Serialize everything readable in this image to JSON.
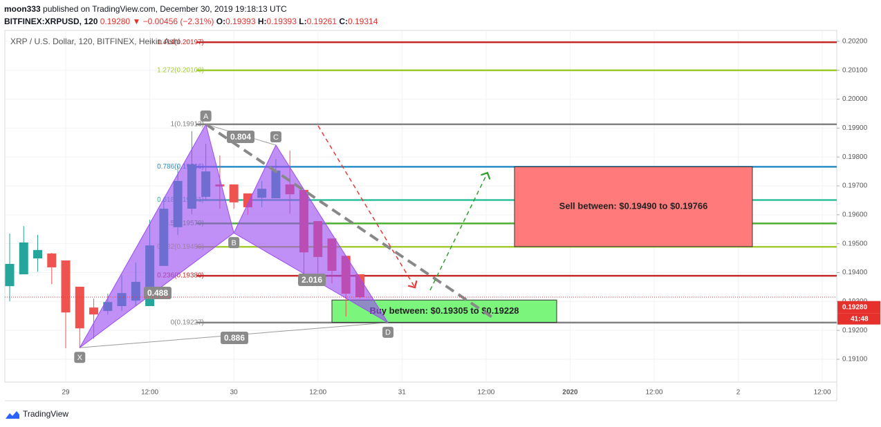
{
  "header": {
    "user": "moon333",
    "published": "published on TradingView.com, December 30, 2019 19:18:13 UTC",
    "symbol": "BITFINEX:XRPUSD, 120",
    "last": "0.19280",
    "change": "▼ −0.00456 (−2.31%)",
    "ohlc": [
      {
        "label": "O:",
        "value": "0.19393"
      },
      {
        "label": "H:",
        "value": "0.19393"
      },
      {
        "label": "L:",
        "value": "0.19261"
      },
      {
        "label": "C:",
        "value": "0.19314"
      }
    ]
  },
  "chart_data": {
    "type": "candlestick",
    "title": "XRP / U.S. Dollar, 120, BITFINEX, Heikin Ashi",
    "categories": [
      null,
      null,
      null,
      null,
      "29",
      null,
      null,
      null,
      null,
      null,
      "12:00",
      null,
      null,
      null,
      null,
      null,
      "30",
      null,
      null,
      null,
      null,
      null,
      "12:00",
      null,
      null,
      null,
      null,
      null,
      "31",
      null,
      null,
      null,
      null,
      null,
      "12:00",
      null,
      null,
      null,
      null,
      null,
      "2020",
      null,
      null,
      null,
      null,
      null,
      "12:00",
      null,
      null,
      null,
      null,
      null,
      "2",
      null,
      null,
      null,
      null,
      null,
      "12:00"
    ],
    "open": [
      0.19353,
      0.19394,
      0.19449,
      0.19466,
      0.19442,
      0.19351,
      0.19279,
      0.19267,
      0.19284,
      0.19303,
      0.19284,
      0.19423,
      0.19557,
      0.19621,
      0.19662,
      0.19705,
      0.19705,
      0.19674,
      0.19659,
      0.19657,
      0.19705,
      0.19686,
      0.19578,
      0.19518,
      0.19458,
      0.19394,
      null,
      null,
      null,
      null,
      null,
      null,
      null,
      null,
      null,
      null,
      null,
      null,
      null,
      null,
      null,
      null,
      null,
      null,
      null,
      null,
      null,
      null,
      null,
      null,
      null,
      null,
      null,
      null,
      null,
      null,
      null,
      null,
      null
    ],
    "high": [
      0.19535,
      0.19561,
      0.1953,
      0.19468,
      0.19442,
      0.19351,
      0.1931,
      0.19327,
      0.19391,
      0.19435,
      0.19583,
      0.1965,
      0.19769,
      0.19889,
      0.19846,
      0.19805,
      0.19705,
      0.19674,
      0.19717,
      0.19793,
      0.19822,
      0.19686,
      0.19578,
      0.19518,
      0.19458,
      0.19394,
      null,
      null,
      null,
      null,
      null,
      null,
      null,
      null,
      null,
      null,
      null,
      null,
      null,
      null,
      null,
      null,
      null,
      null,
      null,
      null,
      null,
      null,
      null,
      null,
      null,
      null,
      null,
      null,
      null,
      null,
      null,
      null,
      null
    ],
    "low": [
      0.193,
      0.19394,
      0.19403,
      0.1936,
      0.19138,
      0.19138,
      0.19171,
      0.19255,
      0.19267,
      0.19284,
      0.19284,
      0.19423,
      0.1953,
      0.19602,
      0.1965,
      0.19621,
      0.19621,
      0.196,
      0.19626,
      0.19657,
      0.19604,
      0.19387,
      0.19399,
      0.19363,
      0.19248,
      0.1931,
      null,
      null,
      null,
      null,
      null,
      null,
      null,
      null,
      null,
      null,
      null,
      null,
      null,
      null,
      null,
      null,
      null,
      null,
      null,
      null,
      null,
      null,
      null,
      null,
      null,
      null,
      null,
      null,
      null,
      null,
      null,
      null,
      null
    ],
    "close": [
      0.1943,
      0.19504,
      0.19478,
      0.19418,
      0.19262,
      0.19207,
      0.19255,
      0.19298,
      0.19329,
      0.19368,
      0.19494,
      0.19621,
      0.19717,
      0.19774,
      0.1975,
      0.19698,
      0.19643,
      0.19626,
      0.1969,
      0.19753,
      0.19671,
      0.1947,
      0.19454,
      0.19406,
      0.19327,
      0.19315,
      null,
      null,
      null,
      null,
      null,
      null,
      null,
      null,
      null,
      null,
      null,
      null,
      null,
      null,
      null,
      null,
      null,
      null,
      null,
      null,
      null,
      null,
      null,
      null,
      null,
      null,
      null,
      null,
      null,
      null,
      null,
      null,
      null
    ],
    "up_color": "#26a69a",
    "down_color": "#ef5350",
    "ylim": [
      0.19021,
      0.20238
    ],
    "yticks": [
      {
        "value": 0.191,
        "label": "0.19100"
      },
      {
        "value": 0.192,
        "label": "0.19200"
      },
      {
        "value": 0.193,
        "label": "0.19300"
      },
      {
        "value": 0.194,
        "label": "0.19400"
      },
      {
        "value": 0.195,
        "label": "0.19500"
      },
      {
        "value": 0.196,
        "label": "0.19600"
      },
      {
        "value": 0.197,
        "label": "0.19700"
      },
      {
        "value": 0.198,
        "label": "0.19800"
      },
      {
        "value": 0.199,
        "label": "0.19900"
      },
      {
        "value": 0.2,
        "label": "0.20000"
      },
      {
        "value": 0.201,
        "label": "0.20100"
      },
      {
        "value": 0.202,
        "label": "0.20200"
      }
    ],
    "grid": true,
    "fib_levels": [
      {
        "label": "1.414(0.20197)",
        "value": 0.20197,
        "color": "#c62828"
      },
      {
        "label": "1.272(0.20100)",
        "value": 0.201,
        "color": "#9ccc2c"
      },
      {
        "label": "1(0.19913)",
        "value": 0.19913,
        "color": "#808080"
      },
      {
        "label": "0.786(0.19766)",
        "value": 0.19766,
        "color": "#2a8dc8"
      },
      {
        "label": "0.618(0.19651)",
        "value": 0.19651,
        "color": "#2bbf9a"
      },
      {
        "label": "0.5(0.19570)",
        "value": 0.1957,
        "color": "#4caf33"
      },
      {
        "label": "0.382(0.19489)",
        "value": 0.19489,
        "color": "#a5cc34"
      },
      {
        "label": "0.236(0.19389)",
        "value": 0.19389,
        "color": "#c62828"
      },
      {
        "label": "0(0.19227)",
        "value": 0.19227,
        "color": "#808080"
      }
    ],
    "pattern_points": [
      {
        "label": "X",
        "value": 0.1914
      },
      {
        "label": "A",
        "value": 0.19913
      },
      {
        "label": "B",
        "value": 0.19537
      },
      {
        "label": "C",
        "value": 0.19841
      },
      {
        "label": "D",
        "value": 0.19227
      }
    ],
    "pattern_color": "#9b4cf2",
    "ratios": [
      "0.488",
      "0.804",
      "0.886",
      "2.016"
    ],
    "zones": [
      {
        "label": "Sell between: $0.19490 to $0.19766",
        "low": 0.1949,
        "high": 0.19766,
        "color": "#ff7b7b"
      },
      {
        "label": "Buy between: $0.19305 to $0.19228",
        "low": 0.19228,
        "high": 0.19305,
        "color": "#7cf57c"
      }
    ],
    "last_price": {
      "value": 0.1928,
      "label": "0.19280"
    },
    "countdown": "41:48"
  },
  "footer": {
    "brand": "TradingView"
  }
}
